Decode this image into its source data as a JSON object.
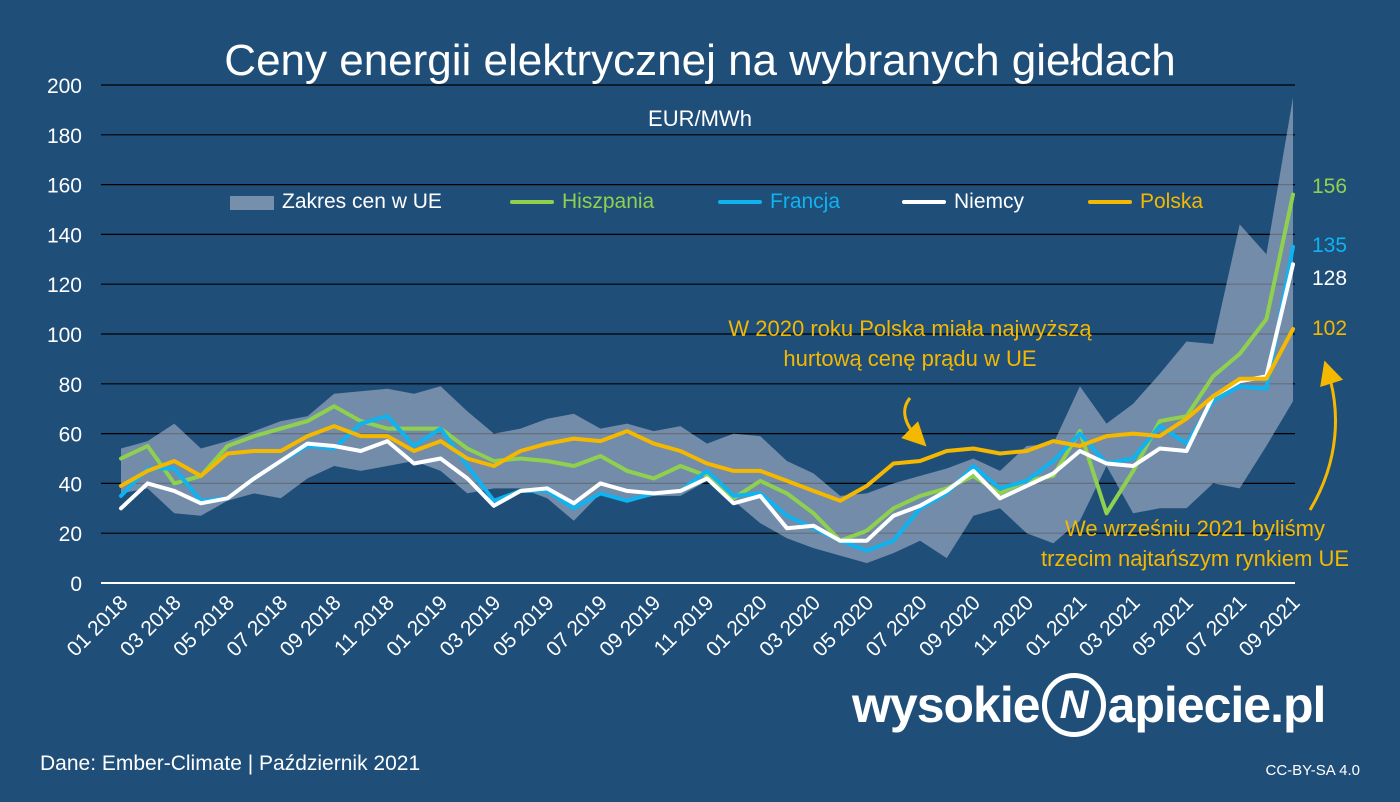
{
  "chart_data": {
    "type": "line",
    "title": "Ceny energii elektrycznej na wybranych giełdach",
    "subtitle": "EUR/MWh",
    "ylim": [
      0,
      200
    ],
    "yticks": [
      0,
      20,
      40,
      60,
      80,
      100,
      120,
      140,
      160,
      180,
      200
    ],
    "grid": true,
    "legend_position": "top",
    "x": [
      "01 2018",
      "02 2018",
      "03 2018",
      "04 2018",
      "05 2018",
      "06 2018",
      "07 2018",
      "08 2018",
      "09 2018",
      "10 2018",
      "11 2018",
      "12 2018",
      "01 2019",
      "02 2019",
      "03 2019",
      "04 2019",
      "05 2019",
      "06 2019",
      "07 2019",
      "08 2019",
      "09 2019",
      "10 2019",
      "11 2019",
      "12 2019",
      "01 2020",
      "02 2020",
      "03 2020",
      "04 2020",
      "05 2020",
      "06 2020",
      "07 2020",
      "08 2020",
      "09 2020",
      "10 2020",
      "11 2020",
      "12 2020",
      "01 2021",
      "02 2021",
      "03 2021",
      "04 2021",
      "05 2021",
      "06 2021",
      "07 2021",
      "08 2021",
      "09 2021"
    ],
    "xtick_labels": [
      "01 2018",
      "03 2018",
      "05 2018",
      "07 2018",
      "09 2018",
      "11 2018",
      "01 2019",
      "03 2019",
      "05 2019",
      "07 2019",
      "09 2019",
      "11 2019",
      "01 2020",
      "03 2020",
      "05 2020",
      "07 2020",
      "09 2020",
      "11 2020",
      "01 2021",
      "03 2021",
      "05 2021",
      "07 2021",
      "09 2021"
    ],
    "range": {
      "name": "Zakres cen w UE",
      "color": "#a6b3c7",
      "low": [
        36,
        38,
        28,
        27,
        33,
        36,
        34,
        42,
        47,
        45,
        47,
        49,
        45,
        36,
        38,
        38,
        34,
        25,
        36,
        33,
        35,
        35,
        41,
        33,
        24,
        18,
        14,
        11,
        8,
        12,
        17,
        10,
        27,
        30,
        20,
        16,
        25,
        47,
        28,
        30,
        30,
        40,
        38,
        55,
        73
      ],
      "high": [
        54,
        57,
        64,
        54,
        57,
        61,
        65,
        67,
        76,
        77,
        78,
        76,
        79,
        69,
        60,
        62,
        66,
        68,
        62,
        64,
        61,
        63,
        56,
        60,
        59,
        49,
        44,
        35,
        36,
        40,
        43,
        46,
        50,
        45,
        55,
        56,
        79,
        64,
        72,
        84,
        97,
        96,
        144,
        132,
        195
      ]
    },
    "series": [
      {
        "name": "Hiszpania",
        "color": "#8fd14f",
        "values": [
          50,
          55,
          40,
          43,
          55,
          59,
          62,
          65,
          71,
          65,
          62,
          62,
          62,
          54,
          49,
          50,
          49,
          47,
          51,
          45,
          42,
          47,
          43,
          34,
          41,
          36,
          28,
          17,
          21,
          30,
          35,
          38,
          43,
          36,
          41,
          43,
          61,
          28,
          45,
          65,
          67,
          83,
          92,
          106,
          156
        ]
      },
      {
        "name": "Francja",
        "color": "#0fb3f0",
        "values": [
          35,
          46,
          46,
          33,
          34,
          42,
          49,
          55,
          54,
          64,
          67,
          55,
          62,
          47,
          33,
          37,
          37,
          30,
          36,
          33,
          36,
          37,
          45,
          35,
          36,
          27,
          22,
          17,
          13,
          17,
          30,
          36,
          47,
          38,
          41,
          49,
          60,
          48,
          50,
          63,
          56,
          73,
          79,
          78,
          135
        ]
      },
      {
        "name": "Niemcy",
        "color": "#ffffff",
        "values": [
          30,
          40,
          37,
          32,
          34,
          42,
          49,
          56,
          55,
          53,
          57,
          48,
          50,
          42,
          31,
          37,
          38,
          32,
          40,
          37,
          36,
          37,
          42,
          32,
          35,
          22,
          23,
          17,
          17,
          27,
          31,
          37,
          45,
          34,
          39,
          44,
          53,
          48,
          47,
          54,
          53,
          75,
          81,
          83,
          128
        ]
      },
      {
        "name": "Polska",
        "color": "#f5b800",
        "values": [
          39,
          45,
          49,
          43,
          52,
          53,
          53,
          59,
          63,
          59,
          59,
          53,
          57,
          50,
          47,
          53,
          56,
          58,
          57,
          61,
          56,
          53,
          48,
          45,
          45,
          41,
          37,
          33,
          39,
          48,
          49,
          53,
          54,
          52,
          53,
          57,
          55,
          59,
          60,
          59,
          66,
          75,
          82,
          82,
          102
        ]
      }
    ],
    "end_labels": [
      {
        "text": "156",
        "color": "#8fd14f",
        "value": 156
      },
      {
        "text": "135",
        "color": "#0fb3f0",
        "value": 135
      },
      {
        "text": "128",
        "color": "#ffffff",
        "value": 128
      },
      {
        "text": "102",
        "color": "#f5b800",
        "value": 102
      }
    ],
    "annotations": [
      {
        "line1": "W 2020 roku Polska miała najwyższą",
        "line2": "hurtową cenę prądu w UE"
      },
      {
        "line1": "We wrześniu 2021 byliśmy",
        "line2": "trzecim najtańszym rynkiem UE"
      }
    ]
  },
  "footer": {
    "source": "Dane: Ember-Climate  |  Październik 2021",
    "license": "CC-BY-SA 4.0",
    "logo_left": "wysokie",
    "logo_mark": "N",
    "logo_right": "apiecie.pl"
  }
}
